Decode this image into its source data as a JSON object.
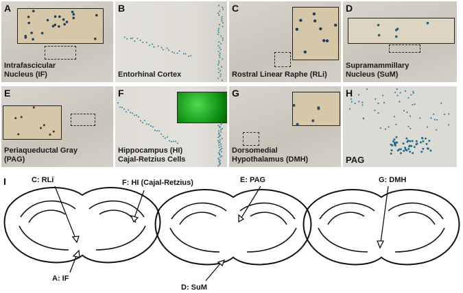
{
  "panels": [
    {
      "letter": "A",
      "caption": [
        "Intrafascicular",
        "Nucleus (IF)"
      ]
    },
    {
      "letter": "B",
      "caption": [
        "Entorhinal Cortex"
      ]
    },
    {
      "letter": "C",
      "caption": [
        "Rostral Linear Raphe (RLi)"
      ]
    },
    {
      "letter": "D",
      "caption": [
        "Supramammillary",
        "Nucleus (SuM)"
      ]
    },
    {
      "letter": "E",
      "caption": [
        "Periaqueductal Gray",
        "(PAG)"
      ]
    },
    {
      "letter": "F",
      "caption": [
        "Hippocampus (HI)",
        "Cajal-Retzius Cells"
      ]
    },
    {
      "letter": "G",
      "caption": [
        "Dorsomedial",
        "Hypothalamus (DMH)"
      ]
    },
    {
      "letter": "H",
      "caption": [
        "PAG"
      ]
    }
  ],
  "diagram": {
    "letter": "I",
    "labels": [
      "C: RLi",
      "F: HI (Cajal-Retzius)",
      "A: IF",
      "E: PAG",
      "D: SuM",
      "G: DMH"
    ]
  }
}
